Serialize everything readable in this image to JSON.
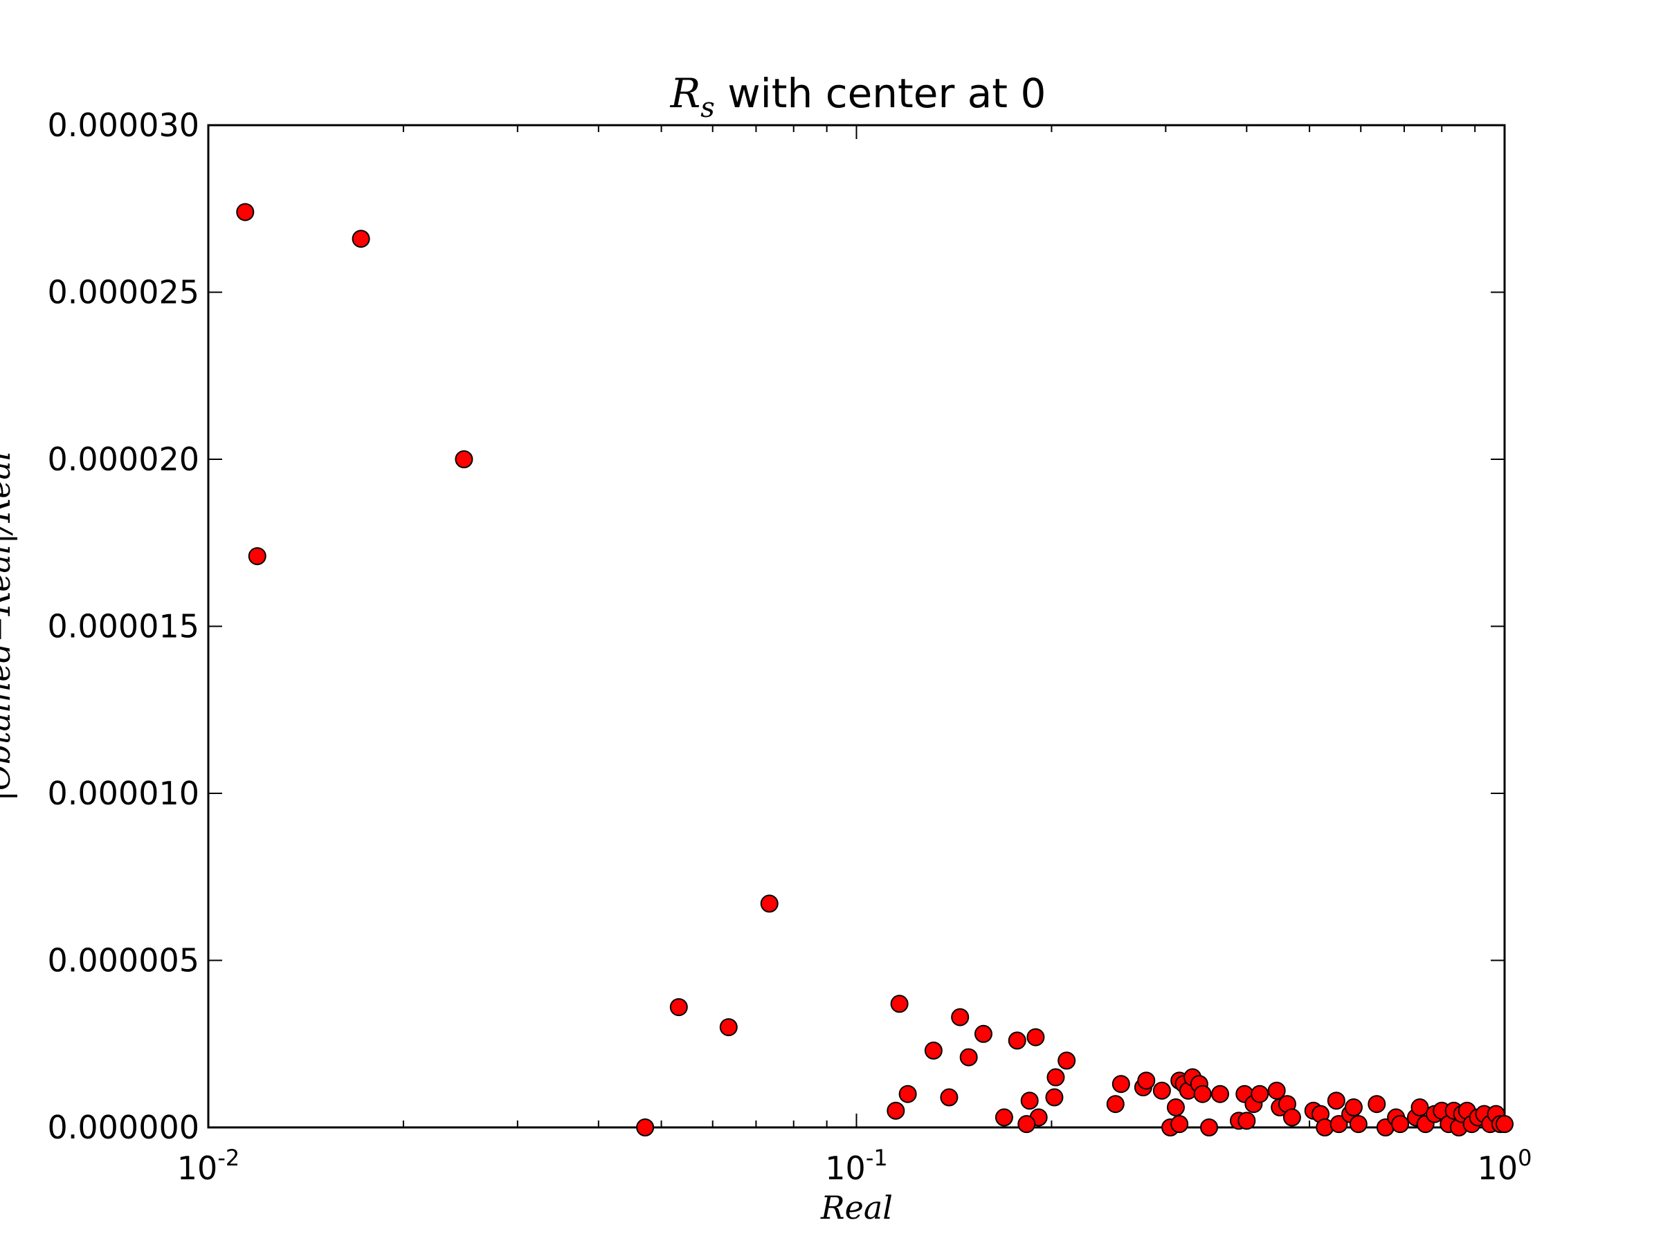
{
  "chart_data": {
    "type": "scatter",
    "title_math": "R",
    "title_math_sub": "s",
    "title_text": " with center at 0",
    "xlabel": "Real",
    "ylabel": "|Obtained−Real|/Real",
    "xscale": "log",
    "xlim": [
      0.01,
      1
    ],
    "ylim": [
      0,
      3e-05
    ],
    "x_ticks": [
      {
        "base": "10",
        "exp": "-2",
        "value": 0.01
      },
      {
        "base": "10",
        "exp": "-1",
        "value": 0.1
      },
      {
        "base": "10",
        "exp": "0",
        "value": 1
      }
    ],
    "y_ticks": [
      {
        "label": "0.000000",
        "value": 0
      },
      {
        "label": "0.000005",
        "value": 5e-06
      },
      {
        "label": "0.000010",
        "value": 1e-05
      },
      {
        "label": "0.000015",
        "value": 1.5e-05
      },
      {
        "label": "0.000020",
        "value": 2e-05
      },
      {
        "label": "0.000025",
        "value": 2.5e-05
      },
      {
        "label": "0.000030",
        "value": 3e-05
      }
    ],
    "marker_color": "#ff0000",
    "marker_edge_color": "#000000",
    "grid": false,
    "points": [
      [
        0.0114,
        2.74e-05
      ],
      [
        0.0172,
        2.66e-05
      ],
      [
        0.0248,
        2e-05
      ],
      [
        0.0119,
        1.71e-05
      ],
      [
        0.0734,
        6.7e-06
      ],
      [
        0.0532,
        3.6e-06
      ],
      [
        0.0635,
        3e-06
      ],
      [
        0.0472,
        0.0
      ],
      [
        0.1165,
        3.7e-06
      ],
      [
        0.1445,
        3.3e-06
      ],
      [
        0.157,
        2.8e-06
      ],
      [
        0.177,
        2.6e-06
      ],
      [
        0.189,
        2.7e-06
      ],
      [
        0.1315,
        2.3e-06
      ],
      [
        0.149,
        2.1e-06
      ],
      [
        0.211,
        2e-06
      ],
      [
        0.203,
        1.5e-06
      ],
      [
        0.12,
        1e-06
      ],
      [
        0.139,
        9e-07
      ],
      [
        0.185,
        8e-07
      ],
      [
        0.202,
        9e-07
      ],
      [
        0.115,
        5e-07
      ],
      [
        0.169,
        3e-07
      ],
      [
        0.191,
        3e-07
      ],
      [
        0.183,
        1e-07
      ],
      [
        0.251,
        7e-07
      ],
      [
        0.256,
        1.3e-06
      ],
      [
        0.277,
        1.2e-06
      ],
      [
        0.28,
        1.4e-06
      ],
      [
        0.296,
        1.1e-06
      ],
      [
        0.305,
        0.0
      ],
      [
        0.311,
        6e-07
      ],
      [
        0.315,
        1e-07
      ],
      [
        0.315,
        1.4e-06
      ],
      [
        0.32,
        1.3e-06
      ],
      [
        0.325,
        1.1e-06
      ],
      [
        0.33,
        1.5e-06
      ],
      [
        0.338,
        1.3e-06
      ],
      [
        0.342,
        1e-06
      ],
      [
        0.35,
        0.0
      ],
      [
        0.364,
        1e-06
      ],
      [
        0.389,
        2e-07
      ],
      [
        0.397,
        1e-06
      ],
      [
        0.4,
        2e-07
      ],
      [
        0.41,
        7e-07
      ],
      [
        0.419,
        1e-06
      ],
      [
        0.445,
        1.1e-06
      ],
      [
        0.45,
        6e-07
      ],
      [
        0.462,
        7e-07
      ],
      [
        0.47,
        3e-07
      ],
      [
        0.507,
        5e-07
      ],
      [
        0.52,
        4e-07
      ],
      [
        0.528,
        0.0
      ],
      [
        0.55,
        8e-07
      ],
      [
        0.555,
        1e-07
      ],
      [
        0.578,
        4e-07
      ],
      [
        0.585,
        6e-07
      ],
      [
        0.595,
        1e-07
      ],
      [
        0.635,
        7e-07
      ],
      [
        0.655,
        0.0
      ],
      [
        0.68,
        3e-07
      ],
      [
        0.69,
        1e-07
      ],
      [
        0.73,
        3e-07
      ],
      [
        0.74,
        6e-07
      ],
      [
        0.755,
        1e-07
      ],
      [
        0.78,
        4e-07
      ],
      [
        0.8,
        5e-07
      ],
      [
        0.82,
        1e-07
      ],
      [
        0.835,
        5e-07
      ],
      [
        0.85,
        0.0
      ],
      [
        0.86,
        4e-07
      ],
      [
        0.875,
        5e-07
      ],
      [
        0.89,
        1e-07
      ],
      [
        0.91,
        3e-07
      ],
      [
        0.93,
        4e-07
      ],
      [
        0.95,
        1e-07
      ],
      [
        0.97,
        4e-07
      ],
      [
        0.985,
        1e-07
      ],
      [
        1.0,
        1e-07
      ]
    ]
  }
}
